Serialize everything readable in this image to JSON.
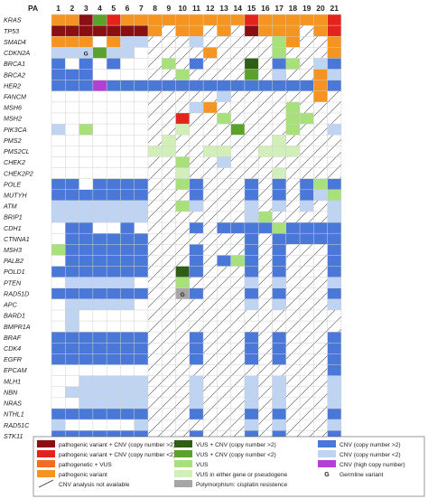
{
  "chart_data": {
    "type": "heatmap",
    "column_header": "PA",
    "columns": [
      "1",
      "2",
      "3",
      "4",
      "5",
      "6",
      "7",
      "8",
      "9",
      "10",
      "11",
      "12",
      "13",
      "14",
      "15",
      "16",
      "17",
      "18",
      "19",
      "20",
      "21"
    ],
    "genes": [
      "KRAS",
      "TP53",
      "SMAD4",
      "CDKN2A",
      "BRCA1",
      "BRCA2",
      "HER2",
      "FANCM",
      "MSH6",
      "MSH2",
      "PIK3CA",
      "PMS2",
      "PMS2CL",
      "CHEK2",
      "CHEK2P2",
      "POLE",
      "MUTYH",
      "ATM",
      "BRIP1",
      "CDH1",
      "CTNNA1",
      "MSH3",
      "PALB2",
      "POLD1",
      "PTEN",
      "RAD51D",
      "APC",
      "BARD1",
      "BMPR1A",
      "BRAF",
      "CDK4",
      "EGFR",
      "EPCAM",
      "MLH1",
      "NBN",
      "NRAS",
      "NTHL1",
      "RAD51C",
      "STK11"
    ],
    "hatched_columns": [
      "8",
      "9",
      "10",
      "11",
      "12",
      "13",
      "14",
      "15",
      "16",
      "17",
      "18",
      "19",
      "20",
      "21"
    ],
    "category_colors": {
      "pathogenic_cnv_gt2": "#8b0e12",
      "pathogenic_cnv_lt2": "#e4231c",
      "pathogenic_vus": "#f26c22",
      "pathogenic": "#f59420",
      "vus_cnv_gt2": "#2f5f16",
      "vus_cnv_lt2": "#5aa22c",
      "vus": "#a8e07c",
      "vus_pseudogene": "#d2efb9",
      "polymorphism": "#a6a6a6",
      "cnv_gt2": "#4a78d8",
      "cnv_lt2": "#bfd3f2",
      "cnv_high": "#b43fd6"
    },
    "cells": {
      "KRAS": {
        "1": "pathogenic",
        "2": "pathogenic",
        "3": "pathogenic_cnv_gt2",
        "4": "vus_cnv_lt2",
        "5": "pathogenic_cnv_lt2",
        "6": "pathogenic",
        "7": "pathogenic",
        "8": "pathogenic",
        "9": "pathogenic",
        "10": "pathogenic",
        "11": "pathogenic",
        "12": "pathogenic",
        "13": "pathogenic",
        "14": "pathogenic",
        "15": "pathogenic_cnv_lt2",
        "16": "pathogenic",
        "17": "pathogenic",
        "18": "pathogenic",
        "19": "pathogenic",
        "20": "pathogenic",
        "21": "pathogenic_cnv_lt2"
      },
      "TP53": {
        "1": "pathogenic_cnv_gt2",
        "2": "pathogenic_cnv_gt2",
        "3": "pathogenic_cnv_gt2",
        "4": "pathogenic_cnv_gt2",
        "5": "pathogenic_cnv_gt2",
        "6": "pathogenic_cnv_gt2",
        "7": "pathogenic_cnv_gt2",
        "8": "pathogenic",
        "10": "pathogenic",
        "11": "pathogenic",
        "13": "pathogenic",
        "15": "pathogenic_cnv_gt2",
        "16": "pathogenic",
        "17": "pathogenic",
        "18": "pathogenic",
        "20": "pathogenic",
        "21": "pathogenic_cnv_lt2"
      },
      "SMAD4": {
        "1": "pathogenic",
        "2": "pathogenic",
        "3": "pathogenic",
        "5": "pathogenic",
        "6": "cnv_lt2",
        "7": "cnv_lt2",
        "11": "cnv_lt2",
        "17": "vus",
        "18": "pathogenic",
        "21": "pathogenic"
      },
      "CDKN2A": {
        "1": "cnv_lt2",
        "2": "cnv_lt2",
        "3": "cnv_lt2",
        "4": "vus_cnv_lt2",
        "5": "cnv_lt2",
        "6": "cnv_lt2",
        "12": "pathogenic",
        "17": "vus",
        "21": "pathogenic"
      },
      "BRCA1": {
        "1": "cnv_gt2",
        "3": "cnv_gt2",
        "5": "cnv_gt2",
        "9": "vus",
        "11": "cnv_gt2",
        "15": "vus_cnv_gt2",
        "17": "cnv_gt2",
        "18": "vus",
        "20": "cnv_lt2",
        "21": "cnv_gt2"
      },
      "BRCA2": {
        "1": "cnv_gt2",
        "2": "cnv_gt2",
        "3": "cnv_gt2",
        "10": "vus",
        "15": "vus_cnv_lt2",
        "17": "cnv_lt2",
        "20": "pathogenic",
        "21": "cnv_lt2"
      },
      "HER2": {
        "1": "cnv_gt2",
        "2": "cnv_gt2",
        "3": "cnv_gt2",
        "4": "cnv_high",
        "5": "cnv_gt2",
        "6": "cnv_gt2",
        "7": "cnv_gt2",
        "8": "cnv_gt2",
        "9": "cnv_gt2",
        "10": "cnv_gt2",
        "11": "cnv_gt2",
        "12": "cnv_gt2",
        "13": "cnv_gt2",
        "14": "cnv_gt2",
        "15": "cnv_gt2",
        "16": "cnv_gt2",
        "17": "cnv_gt2",
        "18": "cnv_gt2",
        "19": "cnv_gt2",
        "20": "pathogenic",
        "21": "cnv_gt2"
      },
      "FANCM": {
        "13": "cnv_lt2",
        "20": "pathogenic"
      },
      "MSH6": {
        "11": "cnv_lt2",
        "12": "pathogenic",
        "18": "vus"
      },
      "MSH2": {
        "10": "pathogenic_cnv_lt2",
        "13": "vus",
        "18": "vus",
        "19": "vus"
      },
      "PIK3CA": {
        "1": "cnv_lt2",
        "3": "vus",
        "10": "vus_pseudogene",
        "14": "vus_cnv_lt2",
        "18": "vus",
        "21": "cnv_lt2"
      },
      "PMS2": {
        "9": "vus_pseudogene",
        "17": "vus_pseudogene"
      },
      "PMS2CL": {
        "8": "vus_pseudogene",
        "9": "vus_pseudogene",
        "12": "vus_pseudogene",
        "13": "vus_pseudogene",
        "16": "vus_pseudogene",
        "17": "vus_pseudogene",
        "18": "vus_pseudogene"
      },
      "CHEK2": {
        "10": "vus",
        "13": "cnv_lt2"
      },
      "CHEK2P2": {
        "10": "vus_pseudogene",
        "17": "vus_pseudogene"
      },
      "POLE": {
        "1": "cnv_gt2",
        "2": "cnv_gt2",
        "4": "cnv_gt2",
        "5": "cnv_gt2",
        "6": "cnv_gt2",
        "7": "cnv_gt2",
        "10": "vus",
        "11": "cnv_gt2",
        "15": "cnv_gt2",
        "17": "cnv_gt2",
        "19": "cnv_gt2",
        "20": "vus",
        "21": "cnv_gt2"
      },
      "MUTYH": {
        "1": "cnv_gt2",
        "2": "cnv_gt2",
        "3": "cnv_gt2",
        "4": "cnv_gt2",
        "5": "cnv_gt2",
        "6": "cnv_gt2",
        "7": "cnv_gt2",
        "11": "cnv_gt2",
        "15": "cnv_gt2",
        "17": "cnv_gt2",
        "19": "cnv_gt2",
        "20": "cnv_lt2",
        "21": "vus"
      },
      "ATM": {
        "1": "cnv_lt2",
        "2": "cnv_lt2",
        "3": "cnv_lt2",
        "4": "cnv_lt2",
        "5": "cnv_lt2",
        "6": "cnv_lt2",
        "7": "cnv_lt2",
        "10": "vus",
        "11": "cnv_lt2",
        "15": "cnv_lt2",
        "17": "cnv_lt2",
        "19": "cnv_lt2",
        "21": "cnv_lt2"
      },
      "BRIP1": {
        "1": "cnv_lt2",
        "2": "cnv_lt2",
        "3": "cnv_lt2",
        "4": "cnv_lt2",
        "5": "cnv_lt2",
        "6": "cnv_lt2",
        "7": "cnv_lt2",
        "15": "cnv_lt2",
        "16": "vus",
        "21": "cnv_lt2"
      },
      "CDH1": {
        "2": "cnv_gt2",
        "3": "cnv_gt2",
        "6": "cnv_gt2",
        "11": "cnv_gt2",
        "13": "cnv_gt2",
        "14": "cnv_gt2",
        "15": "cnv_gt2",
        "16": "cnv_gt2",
        "17": "vus",
        "18": "cnv_gt2",
        "19": "cnv_gt2",
        "20": "cnv_gt2",
        "21": "cnv_gt2"
      },
      "CTNNA1": {
        "2": "cnv_gt2",
        "3": "cnv_gt2",
        "4": "cnv_gt2",
        "5": "cnv_gt2",
        "6": "cnv_gt2",
        "7": "cnv_gt2",
        "15": "cnv_gt2",
        "17": "cnv_gt2",
        "18": "cnv_gt2",
        "19": "cnv_gt2",
        "20": "cnv_gt2",
        "21": "cnv_gt2"
      },
      "MSH3": {
        "1": "vus",
        "2": "cnv_gt2",
        "3": "cnv_gt2",
        "4": "cnv_gt2",
        "5": "cnv_gt2",
        "6": "cnv_gt2",
        "7": "cnv_gt2",
        "11": "cnv_gt2",
        "15": "cnv_gt2",
        "17": "cnv_gt2",
        "21": "cnv_gt2"
      },
      "PALB2": {
        "2": "cnv_gt2",
        "3": "cnv_gt2",
        "4": "cnv_gt2",
        "5": "cnv_gt2",
        "6": "cnv_gt2",
        "7": "cnv_gt2",
        "11": "cnv_gt2",
        "13": "cnv_gt2",
        "14": "vus",
        "15": "cnv_gt2",
        "17": "cnv_gt2",
        "21": "cnv_gt2"
      },
      "POLD1": {
        "1": "cnv_gt2",
        "2": "cnv_gt2",
        "3": "cnv_gt2",
        "4": "cnv_gt2",
        "5": "cnv_gt2",
        "6": "cnv_gt2",
        "7": "cnv_gt2",
        "10": "vus_cnv_gt2",
        "11": "cnv_gt2",
        "15": "cnv_gt2",
        "17": "cnv_gt2",
        "21": "cnv_gt2"
      },
      "PTEN": {
        "2": "cnv_lt2",
        "3": "cnv_lt2",
        "4": "cnv_lt2",
        "5": "cnv_lt2",
        "6": "cnv_lt2",
        "10": "vus",
        "15": "cnv_lt2",
        "17": "cnv_lt2",
        "21": "cnv_lt2"
      },
      "RAD51D": {
        "1": "cnv_gt2",
        "2": "cnv_gt2",
        "3": "cnv_gt2",
        "4": "cnv_gt2",
        "5": "cnv_gt2",
        "6": "cnv_gt2",
        "7": "cnv_gt2",
        "10": "polymorphism",
        "11": "cnv_gt2",
        "15": "cnv_gt2",
        "17": "cnv_gt2",
        "21": "cnv_gt2"
      },
      "APC": {
        "2": "cnv_lt2",
        "3": "cnv_lt2",
        "4": "cnv_lt2",
        "5": "cnv_lt2",
        "6": "cnv_lt2",
        "15": "cnv_lt2",
        "17": "cnv_lt2",
        "21": "cnv_lt2"
      },
      "BARD1": {
        "2": "cnv_lt2"
      },
      "BMPR1A": {
        "2": "cnv_lt2"
      },
      "BRAF": {
        "1": "cnv_gt2",
        "2": "cnv_gt2",
        "3": "cnv_gt2",
        "4": "cnv_gt2",
        "5": "cnv_gt2",
        "6": "cnv_gt2",
        "7": "cnv_gt2",
        "11": "cnv_gt2",
        "15": "cnv_gt2",
        "17": "cnv_gt2",
        "21": "cnv_gt2"
      },
      "CDK4": {
        "1": "cnv_gt2",
        "2": "cnv_gt2",
        "3": "cnv_gt2",
        "4": "cnv_gt2",
        "5": "cnv_gt2",
        "6": "cnv_gt2",
        "7": "cnv_gt2",
        "11": "cnv_gt2",
        "15": "cnv_gt2",
        "17": "cnv_gt2",
        "21": "cnv_gt2"
      },
      "EGFR": {
        "1": "cnv_gt2",
        "2": "cnv_gt2",
        "3": "cnv_gt2",
        "4": "cnv_gt2",
        "5": "cnv_gt2",
        "6": "cnv_gt2",
        "7": "cnv_gt2",
        "11": "cnv_gt2",
        "15": "cnv_gt2",
        "17": "cnv_gt2",
        "21": "cnv_gt2"
      },
      "EPCAM": {
        "21": "cnv_gt2"
      },
      "MLH1": {
        "3": "cnv_lt2",
        "4": "cnv_lt2",
        "5": "cnv_lt2",
        "6": "cnv_lt2",
        "7": "cnv_lt2",
        "11": "cnv_lt2",
        "15": "cnv_lt2",
        "17": "cnv_lt2",
        "21": "cnv_lt2"
      },
      "NBN": {
        "2": "cnv_lt2",
        "3": "cnv_lt2",
        "4": "cnv_lt2",
        "5": "cnv_lt2",
        "6": "cnv_lt2",
        "7": "cnv_lt2",
        "11": "cnv_lt2",
        "15": "cnv_lt2",
        "17": "cnv_lt2",
        "21": "cnv_lt2"
      },
      "NRAS": {
        "3": "cnv_lt2",
        "4": "cnv_lt2",
        "5": "cnv_lt2",
        "6": "cnv_lt2",
        "7": "cnv_lt2",
        "11": "cnv_lt2",
        "15": "cnv_lt2",
        "17": "cnv_lt2",
        "21": "cnv_lt2"
      },
      "NTHL1": {
        "1": "cnv_gt2",
        "2": "cnv_gt2",
        "3": "cnv_gt2",
        "4": "cnv_gt2",
        "5": "cnv_gt2",
        "6": "cnv_gt2",
        "7": "cnv_gt2",
        "11": "cnv_gt2",
        "15": "cnv_gt2",
        "17": "cnv_gt2",
        "21": "cnv_gt2"
      },
      "RAD51C": {
        "1": "cnv_lt2",
        "7": "cnv_lt2",
        "15": "cnv_lt2",
        "17": "cnv_lt2",
        "21": "cnv_lt2"
      },
      "STK11": {
        "1": "cnv_gt2",
        "2": "cnv_gt2",
        "3": "cnv_gt2",
        "4": "cnv_gt2",
        "5": "cnv_gt2",
        "6": "cnv_gt2",
        "7": "cnv_gt2",
        "11": "cnv_gt2",
        "15": "cnv_gt2",
        "17": "cnv_gt2",
        "21": "cnv_gt2"
      }
    },
    "germline_marks": [
      {
        "gene": "CDKN2A",
        "column": "3"
      },
      {
        "gene": "RAD51D",
        "column": "10"
      }
    ],
    "germline_symbol": "G",
    "legend": [
      {
        "swatch": "pathogenic_cnv_gt2",
        "label": "pathogenic variant + CNV (copy number >2)"
      },
      {
        "swatch": "pathogenic_cnv_lt2",
        "label": "pathogenic variant + CNV (copy number <2)"
      },
      {
        "swatch": "pathogenic_vus",
        "label": "pathogenetic + VUS"
      },
      {
        "swatch": "pathogenic",
        "label": "pathogenic variant"
      },
      {
        "swatch": "hatch",
        "label": "CNV analysis not available"
      },
      {
        "swatch": "vus_cnv_gt2",
        "label": "VUS + CNV (copy number >2)"
      },
      {
        "swatch": "vus_cnv_lt2",
        "label": "VUS + CNV (copy number <2)"
      },
      {
        "swatch": "vus",
        "label": "VUS"
      },
      {
        "swatch": "vus_pseudogene",
        "label": "VUS in either gene or pseudogene"
      },
      {
        "swatch": "polymorphism",
        "label": "Polymorphism: cisplatin resistence"
      },
      {
        "swatch": "cnv_gt2",
        "label": "CNV (copy number >2)"
      },
      {
        "swatch": "cnv_lt2",
        "label": "CNV (copy number <2)"
      },
      {
        "swatch": "cnv_high",
        "label": "CNV (high copy number)"
      },
      {
        "swatch": "germline",
        "label": "Germline variant"
      }
    ]
  }
}
